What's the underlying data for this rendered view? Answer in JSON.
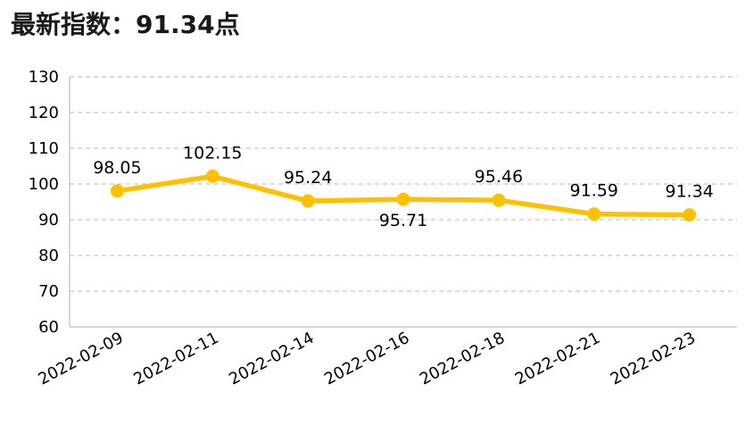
{
  "headline": "最新指数：91.34点",
  "chart_data": {
    "type": "line",
    "title": "",
    "xlabel": "",
    "ylabel": "",
    "categories": [
      "2022-02-09",
      "2022-02-11",
      "2022-02-14",
      "2022-02-16",
      "2022-02-18",
      "2022-02-21",
      "2022-02-23"
    ],
    "series": [
      {
        "values": [
          98.05,
          102.15,
          95.24,
          95.71,
          95.46,
          91.59,
          91.34
        ],
        "color": "#FFC000"
      }
    ],
    "data_labels": [
      "98.05",
      "102.15",
      "95.24",
      "95.71",
      "95.46",
      "91.59",
      "91.34"
    ],
    "label_placement": [
      "above",
      "above",
      "above",
      "below",
      "above",
      "above",
      "above"
    ],
    "ylim": [
      60,
      130
    ],
    "yticks": [
      60,
      70,
      80,
      90,
      100,
      110,
      120,
      130
    ],
    "ytick_labels": [
      "60",
      "70",
      "80",
      "90",
      "100",
      "110",
      "120",
      "130"
    ],
    "grid": true,
    "legend": "none"
  }
}
